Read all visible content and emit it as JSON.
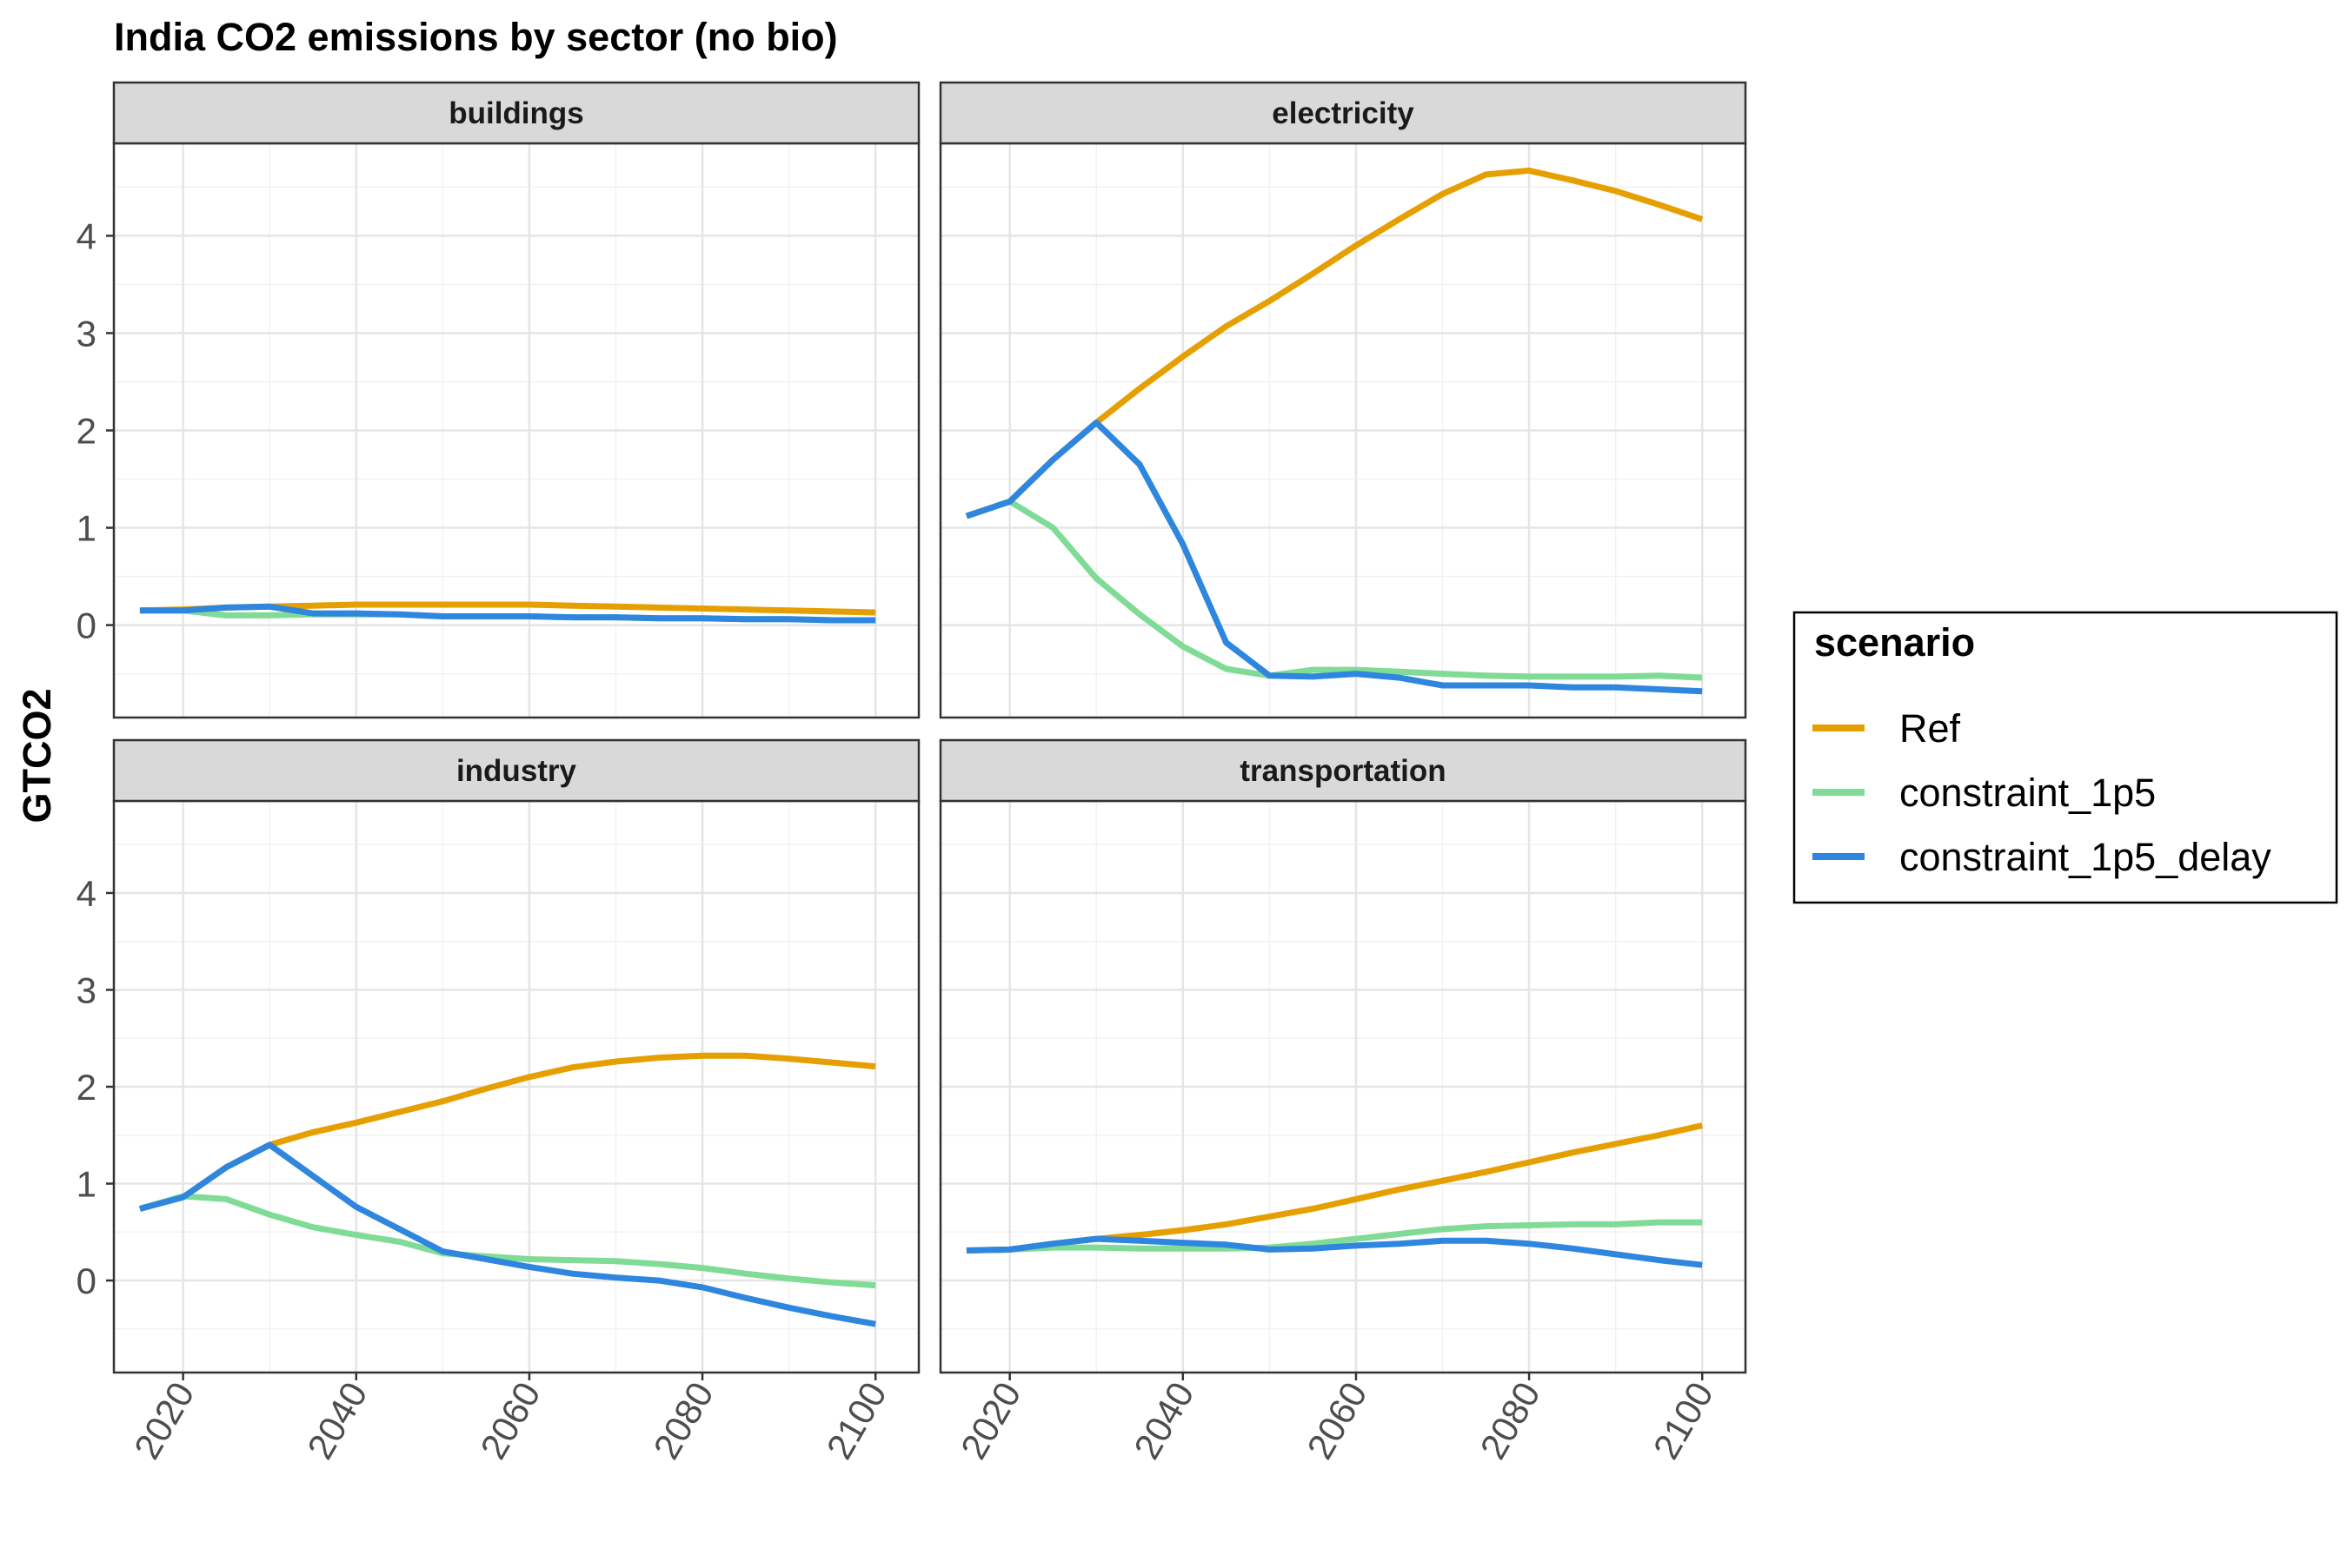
{
  "chart_data": {
    "type": "line",
    "title": "India CO2 emissions by sector (no bio)",
    "xlabel": "",
    "ylabel": "GTCO2",
    "xlim": [
      2012,
      2105
    ],
    "ylim": [
      -0.95,
      4.95
    ],
    "x_ticks": [
      2020,
      2040,
      2060,
      2080,
      2100
    ],
    "y_ticks": [
      0,
      1,
      2,
      3,
      4
    ],
    "grid": true,
    "legend": {
      "title": "scenario",
      "placement": "right",
      "entries": [
        "Ref",
        "constraint_1p5",
        "constraint_1p5_delay"
      ]
    },
    "colors": {
      "Ref": "#E69F00",
      "constraint_1p5": "#7FDB95",
      "constraint_1p5_delay": "#2E86DE"
    },
    "facets": [
      {
        "name": "buildings",
        "series": [
          {
            "name": "Ref",
            "x": [
              2015,
              2020,
              2025,
              2030,
              2035,
              2040,
              2045,
              2050,
              2055,
              2060,
              2065,
              2070,
              2075,
              2080,
              2085,
              2090,
              2095,
              2100
            ],
            "y": [
              0.15,
              0.16,
              0.18,
              0.19,
              0.2,
              0.21,
              0.21,
              0.21,
              0.21,
              0.21,
              0.2,
              0.19,
              0.18,
              0.17,
              0.16,
              0.15,
              0.14,
              0.13
            ]
          },
          {
            "name": "constraint_1p5",
            "x": [
              2015,
              2020,
              2025,
              2030,
              2035,
              2040,
              2045,
              2050,
              2055,
              2060,
              2065,
              2070,
              2075,
              2080,
              2085,
              2090,
              2095,
              2100
            ],
            "y": [
              0.15,
              0.15,
              0.1,
              0.1,
              0.11,
              0.11,
              0.11,
              0.09,
              0.09,
              0.09,
              0.08,
              0.08,
              0.07,
              0.07,
              0.06,
              0.06,
              0.05,
              0.05
            ]
          },
          {
            "name": "constraint_1p5_delay",
            "x": [
              2015,
              2020,
              2025,
              2030,
              2035,
              2040,
              2045,
              2050,
              2055,
              2060,
              2065,
              2070,
              2075,
              2080,
              2085,
              2090,
              2095,
              2100
            ],
            "y": [
              0.15,
              0.15,
              0.18,
              0.19,
              0.12,
              0.12,
              0.11,
              0.09,
              0.09,
              0.09,
              0.08,
              0.08,
              0.07,
              0.07,
              0.06,
              0.06,
              0.05,
              0.05
            ]
          }
        ]
      },
      {
        "name": "electricity",
        "series": [
          {
            "name": "Ref",
            "x": [
              2015,
              2020,
              2025,
              2030,
              2035,
              2040,
              2045,
              2050,
              2055,
              2060,
              2065,
              2070,
              2075,
              2080,
              2085,
              2090,
              2095,
              2100
            ],
            "y": [
              1.12,
              1.27,
              1.7,
              2.08,
              2.43,
              2.76,
              3.07,
              3.33,
              3.61,
              3.9,
              4.17,
              4.43,
              4.63,
              4.67,
              4.57,
              4.46,
              4.32,
              4.17
            ]
          },
          {
            "name": "constraint_1p5",
            "x": [
              2015,
              2020,
              2025,
              2030,
              2035,
              2040,
              2045,
              2050,
              2055,
              2060,
              2065,
              2070,
              2075,
              2080,
              2085,
              2090,
              2095,
              2100
            ],
            "y": [
              1.12,
              1.27,
              1.0,
              0.48,
              0.11,
              -0.22,
              -0.45,
              -0.52,
              -0.46,
              -0.46,
              -0.48,
              -0.5,
              -0.52,
              -0.53,
              -0.53,
              -0.53,
              -0.52,
              -0.54
            ]
          },
          {
            "name": "constraint_1p5_delay",
            "x": [
              2015,
              2020,
              2025,
              2030,
              2035,
              2040,
              2045,
              2050,
              2055,
              2060,
              2065,
              2070,
              2075,
              2080,
              2085,
              2090,
              2095,
              2100
            ],
            "y": [
              1.12,
              1.27,
              1.7,
              2.08,
              1.65,
              0.83,
              -0.18,
              -0.52,
              -0.53,
              -0.5,
              -0.54,
              -0.62,
              -0.62,
              -0.62,
              -0.64,
              -0.64,
              -0.66,
              -0.68
            ]
          }
        ]
      },
      {
        "name": "industry",
        "series": [
          {
            "name": "Ref",
            "x": [
              2015,
              2020,
              2025,
              2030,
              2035,
              2040,
              2045,
              2050,
              2055,
              2060,
              2065,
              2070,
              2075,
              2080,
              2085,
              2090,
              2095,
              2100
            ],
            "y": [
              0.74,
              0.86,
              1.17,
              1.4,
              1.53,
              1.63,
              1.74,
              1.85,
              1.98,
              2.1,
              2.2,
              2.26,
              2.3,
              2.32,
              2.32,
              2.29,
              2.25,
              2.21
            ]
          },
          {
            "name": "constraint_1p5",
            "x": [
              2015,
              2020,
              2025,
              2030,
              2035,
              2040,
              2045,
              2050,
              2055,
              2060,
              2065,
              2070,
              2075,
              2080,
              2085,
              2090,
              2095,
              2100
            ],
            "y": [
              0.74,
              0.87,
              0.84,
              0.68,
              0.55,
              0.47,
              0.4,
              0.28,
              0.25,
              0.22,
              0.21,
              0.2,
              0.17,
              0.13,
              0.07,
              0.02,
              -0.02,
              -0.05
            ]
          },
          {
            "name": "constraint_1p5_delay",
            "x": [
              2015,
              2020,
              2025,
              2030,
              2035,
              2040,
              2045,
              2050,
              2055,
              2060,
              2065,
              2070,
              2075,
              2080,
              2085,
              2090,
              2095,
              2100
            ],
            "y": [
              0.74,
              0.86,
              1.17,
              1.4,
              1.08,
              0.76,
              0.53,
              0.3,
              0.22,
              0.14,
              0.07,
              0.03,
              0.0,
              -0.07,
              -0.18,
              -0.28,
              -0.37,
              -0.45
            ]
          }
        ]
      },
      {
        "name": "transportation",
        "series": [
          {
            "name": "Ref",
            "x": [
              2015,
              2020,
              2025,
              2030,
              2035,
              2040,
              2045,
              2050,
              2055,
              2060,
              2065,
              2070,
              2075,
              2080,
              2085,
              2090,
              2095,
              2100
            ],
            "y": [
              0.31,
              0.32,
              0.38,
              0.43,
              0.47,
              0.52,
              0.58,
              0.66,
              0.74,
              0.84,
              0.94,
              1.03,
              1.12,
              1.22,
              1.32,
              1.41,
              1.5,
              1.6
            ]
          },
          {
            "name": "constraint_1p5",
            "x": [
              2015,
              2020,
              2025,
              2030,
              2035,
              2040,
              2045,
              2050,
              2055,
              2060,
              2065,
              2070,
              2075,
              2080,
              2085,
              2090,
              2095,
              2100
            ],
            "y": [
              0.31,
              0.32,
              0.34,
              0.34,
              0.33,
              0.33,
              0.33,
              0.34,
              0.38,
              0.43,
              0.48,
              0.53,
              0.56,
              0.57,
              0.58,
              0.58,
              0.6,
              0.6
            ]
          },
          {
            "name": "constraint_1p5_delay",
            "x": [
              2015,
              2020,
              2025,
              2030,
              2035,
              2040,
              2045,
              2050,
              2055,
              2060,
              2065,
              2070,
              2075,
              2080,
              2085,
              2090,
              2095,
              2100
            ],
            "y": [
              0.31,
              0.32,
              0.38,
              0.43,
              0.41,
              0.39,
              0.37,
              0.32,
              0.33,
              0.36,
              0.38,
              0.41,
              0.41,
              0.38,
              0.33,
              0.27,
              0.21,
              0.16
            ]
          }
        ]
      }
    ]
  }
}
